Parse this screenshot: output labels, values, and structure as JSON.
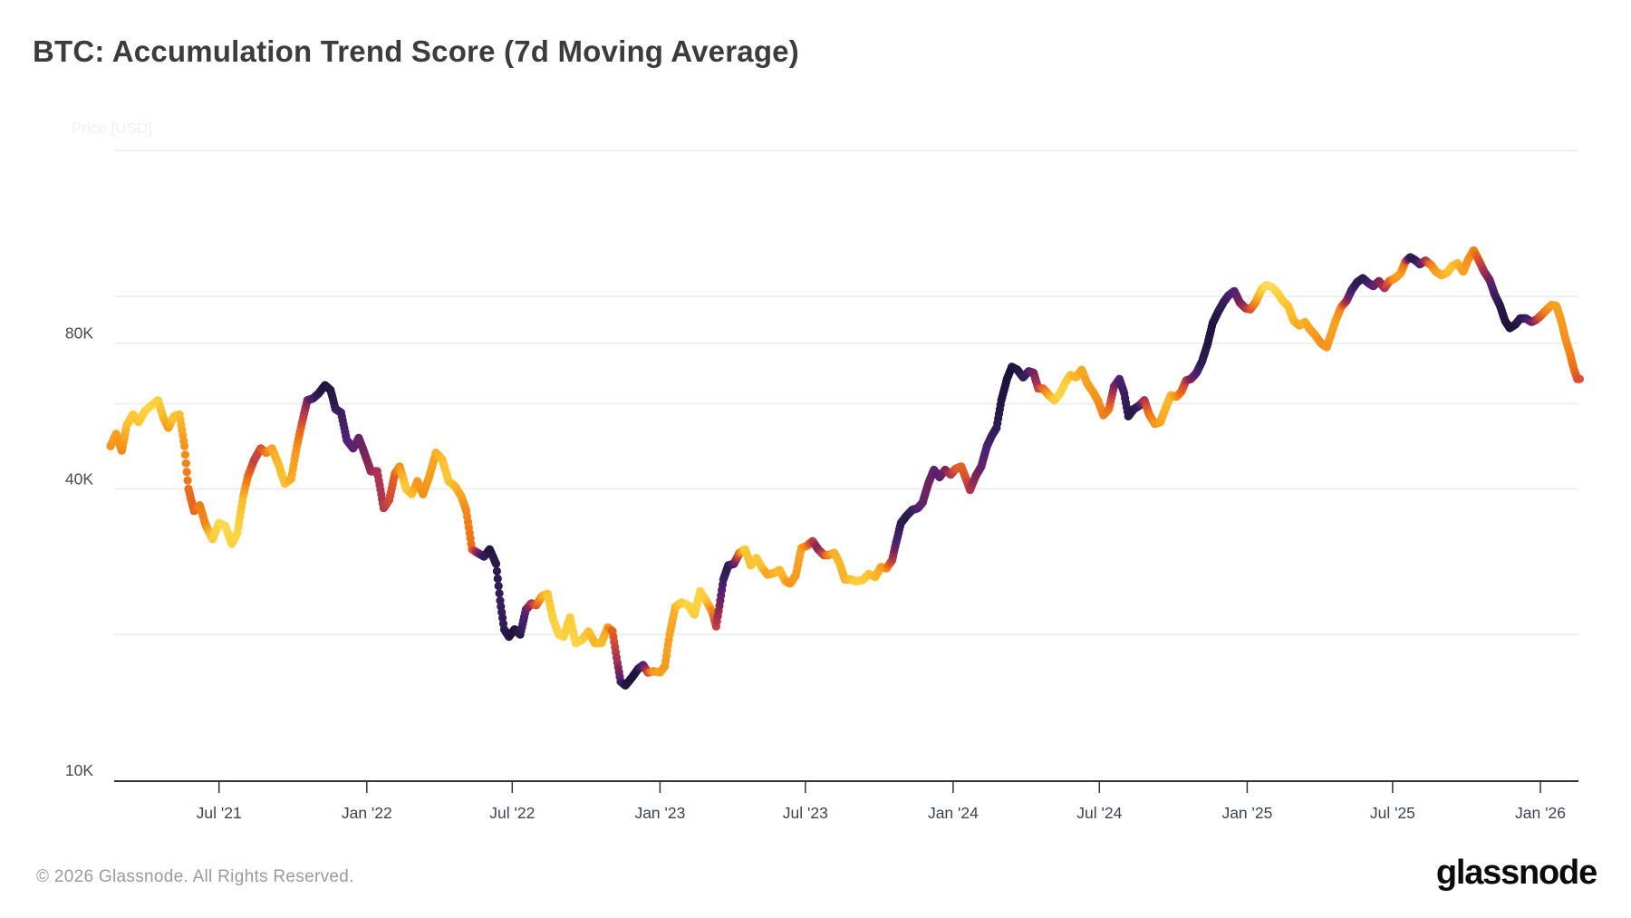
{
  "page": {
    "title": "BTC: Accumulation Trend Score (7d Moving Average)"
  },
  "footer": {
    "copyright": "© 2026 Glassnode. All Rights Reserved.",
    "brand": "glassnode"
  },
  "colors": {
    "background": "#ffffff",
    "title_text": "#3c3c3c",
    "grid_line": "#ececec",
    "axis_line": "#333333",
    "tick_label": "#3d4451",
    "faint_axis_caption": "#eef0f2",
    "score_high_accumulation": "#140c2e",
    "score_neutral": "#d94f30",
    "score_distribution": "#f9e08c"
  },
  "chart_data": {
    "type": "scatter",
    "title": "BTC: Accumulation Trend Score (7d Moving Average)",
    "ylabel": "Price [USD]",
    "yscale": "log",
    "ylim_usd": [
      10000,
      200000
    ],
    "grid": "horizontal-only",
    "legend": "none",
    "colormap": "inferno-reversed: score 1 = dark purple/black (strong accumulation), score 0 = pale yellow (distribution)",
    "gridline_prices_k": [
      20,
      40,
      60,
      80,
      100,
      200
    ],
    "yticks": [
      {
        "label": "10K",
        "value_k": 10
      },
      {
        "label": "40K",
        "value_k": 40
      },
      {
        "label": "80K",
        "value_k": 80
      }
    ],
    "xticks": [
      {
        "label": "Jul '21",
        "date": "2021-07-01"
      },
      {
        "label": "Jan '22",
        "date": "2022-01-01"
      },
      {
        "label": "Jul '22",
        "date": "2022-07-01"
      },
      {
        "label": "Jan '23",
        "date": "2023-01-01"
      },
      {
        "label": "Jul '23",
        "date": "2023-07-01"
      },
      {
        "label": "Jan '24",
        "date": "2024-01-01"
      },
      {
        "label": "Jul '24",
        "date": "2024-07-01"
      },
      {
        "label": "Jan '25",
        "date": "2025-01-01"
      },
      {
        "label": "Jul '25",
        "date": "2025-07-01"
      },
      {
        "label": "Jan '26",
        "date": "2026-01-01"
      }
    ],
    "points_format": [
      "date",
      "btc_price_thousand_usd",
      "accumulation_trend_score_0_to_1"
    ],
    "points": [
      [
        "2021-02-16",
        49,
        0.32
      ],
      [
        "2021-02-23",
        52,
        0.28
      ],
      [
        "2021-03-02",
        48,
        0.35
      ],
      [
        "2021-03-08",
        54,
        0.22
      ],
      [
        "2021-03-16",
        57,
        0.15
      ],
      [
        "2021-03-23",
        55,
        0.18
      ],
      [
        "2021-03-31",
        58,
        0.12
      ],
      [
        "2021-04-08",
        59.5,
        0.1
      ],
      [
        "2021-04-16",
        61,
        0.12
      ],
      [
        "2021-04-23",
        56,
        0.22
      ],
      [
        "2021-04-29",
        53.5,
        0.3
      ],
      [
        "2021-05-06",
        56.5,
        0.18
      ],
      [
        "2021-05-13",
        57,
        0.2
      ],
      [
        "2021-05-19",
        49,
        0.32
      ],
      [
        "2021-05-24",
        40,
        0.42
      ],
      [
        "2021-05-31",
        36,
        0.45
      ],
      [
        "2021-06-07",
        37,
        0.38
      ],
      [
        "2021-06-15",
        33.5,
        0.35
      ],
      [
        "2021-06-23",
        31.5,
        0.15
      ],
      [
        "2021-07-01",
        34,
        0.1
      ],
      [
        "2021-07-09",
        33.5,
        0.08
      ],
      [
        "2021-07-17",
        30.8,
        0.12
      ],
      [
        "2021-07-24",
        32.5,
        0.1
      ],
      [
        "2021-07-31",
        38.5,
        0.22
      ],
      [
        "2021-08-06",
        42.5,
        0.4
      ],
      [
        "2021-08-14",
        46,
        0.55
      ],
      [
        "2021-08-22",
        48.5,
        0.52
      ],
      [
        "2021-08-29",
        47.5,
        0.4
      ],
      [
        "2021-09-05",
        48.5,
        0.28
      ],
      [
        "2021-09-13",
        45,
        0.22
      ],
      [
        "2021-09-21",
        41,
        0.18
      ],
      [
        "2021-09-29",
        42,
        0.25
      ],
      [
        "2021-10-06",
        49,
        0.32
      ],
      [
        "2021-10-12",
        54.5,
        0.48
      ],
      [
        "2021-10-19",
        61,
        0.68
      ],
      [
        "2021-10-26",
        61.5,
        0.82
      ],
      [
        "2021-11-02",
        63,
        0.9
      ],
      [
        "2021-11-10",
        65.5,
        0.96
      ],
      [
        "2021-11-17",
        64,
        0.94
      ],
      [
        "2021-11-23",
        58.5,
        0.9
      ],
      [
        "2021-11-30",
        57.5,
        0.86
      ],
      [
        "2021-12-07",
        50.5,
        0.8
      ],
      [
        "2021-12-15",
        48.5,
        0.78
      ],
      [
        "2021-12-22",
        51,
        0.75
      ],
      [
        "2021-12-29",
        47.5,
        0.72
      ],
      [
        "2022-01-06",
        43.5,
        0.66
      ],
      [
        "2022-01-14",
        43.5,
        0.6
      ],
      [
        "2022-01-22",
        36.5,
        0.58
      ],
      [
        "2022-01-29",
        38,
        0.52
      ],
      [
        "2022-02-05",
        43,
        0.45
      ],
      [
        "2022-02-11",
        44.5,
        0.32
      ],
      [
        "2022-02-19",
        40,
        0.15
      ],
      [
        "2022-02-26",
        39,
        0.2
      ],
      [
        "2022-03-05",
        41.5,
        0.3
      ],
      [
        "2022-03-12",
        39,
        0.33
      ],
      [
        "2022-03-20",
        42.5,
        0.3
      ],
      [
        "2022-03-28",
        47.5,
        0.26
      ],
      [
        "2022-04-05",
        46,
        0.2
      ],
      [
        "2022-04-13",
        41.5,
        0.16
      ],
      [
        "2022-04-21",
        40.5,
        0.22
      ],
      [
        "2022-04-29",
        38.5,
        0.28
      ],
      [
        "2022-05-05",
        36,
        0.35
      ],
      [
        "2022-05-12",
        30,
        0.42
      ],
      [
        "2022-05-19",
        29.5,
        0.65
      ],
      [
        "2022-05-27",
        29,
        0.88
      ],
      [
        "2022-06-03",
        30,
        0.94
      ],
      [
        "2022-06-11",
        28,
        0.92
      ],
      [
        "2022-06-16",
        23.5,
        0.88
      ],
      [
        "2022-06-21",
        20.5,
        0.9
      ],
      [
        "2022-06-27",
        19.8,
        0.94
      ],
      [
        "2022-07-04",
        20.5,
        0.96
      ],
      [
        "2022-07-11",
        20,
        0.92
      ],
      [
        "2022-07-18",
        22.5,
        0.78
      ],
      [
        "2022-07-25",
        23.2,
        0.62
      ],
      [
        "2022-07-31",
        23,
        0.5
      ],
      [
        "2022-08-07",
        24,
        0.3
      ],
      [
        "2022-08-14",
        24.3,
        0.18
      ],
      [
        "2022-08-21",
        21.5,
        0.12
      ],
      [
        "2022-08-28",
        20,
        0.1
      ],
      [
        "2022-09-03",
        19.8,
        0.12
      ],
      [
        "2022-09-11",
        21.7,
        0.15
      ],
      [
        "2022-09-18",
        19.2,
        0.1
      ],
      [
        "2022-09-26",
        19.5,
        0.12
      ],
      [
        "2022-10-04",
        20.3,
        0.18
      ],
      [
        "2022-10-12",
        19.2,
        0.24
      ],
      [
        "2022-10-20",
        19.2,
        0.2
      ],
      [
        "2022-10-28",
        20.7,
        0.28
      ],
      [
        "2022-11-03",
        20.3,
        0.45
      ],
      [
        "2022-11-09",
        17.5,
        0.62
      ],
      [
        "2022-11-13",
        16,
        0.8
      ],
      [
        "2022-11-19",
        15.7,
        0.93
      ],
      [
        "2022-11-27",
        16.3,
        0.96
      ],
      [
        "2022-12-05",
        17,
        0.95
      ],
      [
        "2022-12-11",
        17.3,
        0.82
      ],
      [
        "2022-12-17",
        16.7,
        0.55
      ],
      [
        "2022-12-24",
        16.8,
        0.32
      ],
      [
        "2023-01-01",
        16.7,
        0.28
      ],
      [
        "2023-01-07",
        17.2,
        0.3
      ],
      [
        "2023-01-13",
        20,
        0.28
      ],
      [
        "2023-01-20",
        22.8,
        0.24
      ],
      [
        "2023-01-28",
        23.3,
        0.15
      ],
      [
        "2023-02-05",
        23,
        0.1
      ],
      [
        "2023-02-13",
        22,
        0.13
      ],
      [
        "2023-02-20",
        24.6,
        0.1
      ],
      [
        "2023-02-28",
        23.4,
        0.16
      ],
      [
        "2023-03-07",
        22.3,
        0.35
      ],
      [
        "2023-03-12",
        20.8,
        0.55
      ],
      [
        "2023-03-17",
        23.5,
        0.72
      ],
      [
        "2023-03-21",
        26,
        0.85
      ],
      [
        "2023-03-27",
        27.8,
        0.92
      ],
      [
        "2023-04-03",
        28,
        0.82
      ],
      [
        "2023-04-10",
        29.5,
        0.45
      ],
      [
        "2023-04-17",
        30,
        0.16
      ],
      [
        "2023-04-24",
        27.8,
        0.2
      ],
      [
        "2023-05-01",
        28.8,
        0.15
      ],
      [
        "2023-05-08",
        27.5,
        0.18
      ],
      [
        "2023-05-15",
        26.6,
        0.28
      ],
      [
        "2023-05-23",
        26.8,
        0.24
      ],
      [
        "2023-05-30",
        27.2,
        0.2
      ],
      [
        "2023-06-06",
        25.8,
        0.25
      ],
      [
        "2023-06-12",
        25.5,
        0.32
      ],
      [
        "2023-06-19",
        26.5,
        0.3
      ],
      [
        "2023-06-26",
        30.2,
        0.28
      ],
      [
        "2023-07-03",
        30.5,
        0.35
      ],
      [
        "2023-07-10",
        31.2,
        0.55
      ],
      [
        "2023-07-17",
        30,
        0.68
      ],
      [
        "2023-07-24",
        29.2,
        0.55
      ],
      [
        "2023-07-30",
        29.2,
        0.38
      ],
      [
        "2023-08-06",
        29.5,
        0.25
      ],
      [
        "2023-08-13",
        28,
        0.22
      ],
      [
        "2023-08-19",
        26,
        0.24
      ],
      [
        "2023-08-26",
        26,
        0.2
      ],
      [
        "2023-09-02",
        25.8,
        0.15
      ],
      [
        "2023-09-10",
        25.9,
        0.13
      ],
      [
        "2023-09-18",
        26.7,
        0.17
      ],
      [
        "2023-09-26",
        26.3,
        0.22
      ],
      [
        "2023-10-03",
        27.6,
        0.26
      ],
      [
        "2023-10-10",
        27.4,
        0.32
      ],
      [
        "2023-10-17",
        28.5,
        0.55
      ],
      [
        "2023-10-22",
        31,
        0.8
      ],
      [
        "2023-10-28",
        34,
        0.9
      ],
      [
        "2023-11-04",
        35.2,
        0.92
      ],
      [
        "2023-11-11",
        36.2,
        0.88
      ],
      [
        "2023-11-18",
        36.5,
        0.82
      ],
      [
        "2023-11-24",
        37.5,
        0.76
      ],
      [
        "2023-12-01",
        41,
        0.72
      ],
      [
        "2023-12-08",
        43.8,
        0.76
      ],
      [
        "2023-12-15",
        42.3,
        0.8
      ],
      [
        "2023-12-22",
        43.8,
        0.72
      ],
      [
        "2023-12-29",
        42.8,
        0.6
      ],
      [
        "2024-01-04",
        44,
        0.5
      ],
      [
        "2024-01-11",
        44.5,
        0.45
      ],
      [
        "2024-01-17",
        42,
        0.5
      ],
      [
        "2024-01-22",
        39.8,
        0.58
      ],
      [
        "2024-01-29",
        42.5,
        0.68
      ],
      [
        "2024-02-05",
        44.5,
        0.76
      ],
      [
        "2024-02-12",
        49,
        0.8
      ],
      [
        "2024-02-18",
        51.5,
        0.85
      ],
      [
        "2024-02-24",
        53.5,
        0.9
      ],
      [
        "2024-03-01",
        61,
        0.94
      ],
      [
        "2024-03-08",
        67.5,
        0.96
      ],
      [
        "2024-03-14",
        71.5,
        0.97
      ],
      [
        "2024-03-21",
        70.5,
        0.94
      ],
      [
        "2024-03-28",
        68,
        0.9
      ],
      [
        "2024-04-04",
        70,
        0.84
      ],
      [
        "2024-04-10",
        69.5,
        0.72
      ],
      [
        "2024-04-16",
        64.5,
        0.58
      ],
      [
        "2024-04-22",
        64.5,
        0.45
      ],
      [
        "2024-04-29",
        62.5,
        0.3
      ],
      [
        "2024-05-06",
        61,
        0.16
      ],
      [
        "2024-05-13",
        63,
        0.1
      ],
      [
        "2024-05-20",
        66.5,
        0.12
      ],
      [
        "2024-05-26",
        68.8,
        0.18
      ],
      [
        "2024-06-02",
        68,
        0.22
      ],
      [
        "2024-06-09",
        70.5,
        0.26
      ],
      [
        "2024-06-16",
        66,
        0.28
      ],
      [
        "2024-06-23",
        63.5,
        0.3
      ],
      [
        "2024-06-29",
        61,
        0.33
      ],
      [
        "2024-07-06",
        56.8,
        0.36
      ],
      [
        "2024-07-13",
        58.5,
        0.4
      ],
      [
        "2024-07-19",
        65,
        0.65
      ],
      [
        "2024-07-26",
        67.5,
        0.8
      ],
      [
        "2024-08-01",
        63,
        0.86
      ],
      [
        "2024-08-06",
        56.5,
        0.91
      ],
      [
        "2024-08-13",
        58.5,
        0.93
      ],
      [
        "2024-08-20",
        59.5,
        0.88
      ],
      [
        "2024-08-26",
        61,
        0.6
      ],
      [
        "2024-09-01",
        57,
        0.42
      ],
      [
        "2024-09-08",
        54.5,
        0.32
      ],
      [
        "2024-09-15",
        55,
        0.28
      ],
      [
        "2024-09-21",
        58.5,
        0.24
      ],
      [
        "2024-09-28",
        62.5,
        0.22
      ],
      [
        "2024-10-05",
        62,
        0.3
      ],
      [
        "2024-10-11",
        63.5,
        0.42
      ],
      [
        "2024-10-17",
        67,
        0.55
      ],
      [
        "2024-10-23",
        67.5,
        0.68
      ],
      [
        "2024-10-30",
        69.5,
        0.8
      ],
      [
        "2024-11-06",
        73.5,
        0.9
      ],
      [
        "2024-11-13",
        80,
        0.94
      ],
      [
        "2024-11-19",
        88,
        0.95
      ],
      [
        "2024-11-26",
        93,
        0.92
      ],
      [
        "2024-12-03",
        97.5,
        0.88
      ],
      [
        "2024-12-09",
        100.5,
        0.84
      ],
      [
        "2024-12-16",
        102.5,
        0.8
      ],
      [
        "2024-12-23",
        97,
        0.72
      ],
      [
        "2024-12-30",
        94.5,
        0.62
      ],
      [
        "2025-01-05",
        94,
        0.52
      ],
      [
        "2025-01-12",
        97.5,
        0.35
      ],
      [
        "2025-01-19",
        103.5,
        0.15
      ],
      [
        "2025-01-25",
        105.5,
        0.08
      ],
      [
        "2025-02-01",
        104.5,
        0.06
      ],
      [
        "2025-02-08",
        101.5,
        0.1
      ],
      [
        "2025-02-14",
        98,
        0.14
      ],
      [
        "2025-02-21",
        95.5,
        0.18
      ],
      [
        "2025-02-28",
        89,
        0.22
      ],
      [
        "2025-03-07",
        87,
        0.26
      ],
      [
        "2025-03-14",
        88.5,
        0.24
      ],
      [
        "2025-03-20",
        85.5,
        0.28
      ],
      [
        "2025-03-27",
        83,
        0.3
      ],
      [
        "2025-04-03",
        80,
        0.33
      ],
      [
        "2025-04-10",
        78.5,
        0.32
      ],
      [
        "2025-04-15",
        83,
        0.3
      ],
      [
        "2025-04-21",
        89,
        0.28
      ],
      [
        "2025-04-28",
        95,
        0.35
      ],
      [
        "2025-05-05",
        98,
        0.62
      ],
      [
        "2025-05-11",
        103,
        0.82
      ],
      [
        "2025-05-18",
        107,
        0.9
      ],
      [
        "2025-05-25",
        109,
        0.92
      ],
      [
        "2025-06-01",
        106.5,
        0.86
      ],
      [
        "2025-06-07",
        105,
        0.78
      ],
      [
        "2025-06-14",
        107.5,
        0.7
      ],
      [
        "2025-06-21",
        104,
        0.62
      ],
      [
        "2025-06-27",
        107.5,
        0.48
      ],
      [
        "2025-07-04",
        109,
        0.32
      ],
      [
        "2025-07-11",
        111.5,
        0.28
      ],
      [
        "2025-07-17",
        118,
        0.42
      ],
      [
        "2025-07-23",
        120.5,
        0.88
      ],
      [
        "2025-07-30",
        118.5,
        0.92
      ],
      [
        "2025-08-04",
        116.5,
        0.82
      ],
      [
        "2025-08-11",
        118.5,
        0.65
      ],
      [
        "2025-08-18",
        116,
        0.4
      ],
      [
        "2025-08-24",
        112.5,
        0.3
      ],
      [
        "2025-08-31",
        110.5,
        0.26
      ],
      [
        "2025-09-07",
        112,
        0.22
      ],
      [
        "2025-09-13",
        115.5,
        0.18
      ],
      [
        "2025-09-20",
        117,
        0.22
      ],
      [
        "2025-09-27",
        112.5,
        0.28
      ],
      [
        "2025-10-03",
        119,
        0.32
      ],
      [
        "2025-10-10",
        124.5,
        0.35
      ],
      [
        "2025-10-16",
        119,
        0.48
      ],
      [
        "2025-10-23",
        112.5,
        0.6
      ],
      [
        "2025-10-30",
        108,
        0.72
      ],
      [
        "2025-11-05",
        101,
        0.85
      ],
      [
        "2025-11-12",
        95.5,
        0.92
      ],
      [
        "2025-11-18",
        89,
        0.95
      ],
      [
        "2025-11-24",
        86,
        0.96
      ],
      [
        "2025-12-01",
        87.5,
        0.95
      ],
      [
        "2025-12-07",
        90,
        0.92
      ],
      [
        "2025-12-14",
        90,
        0.88
      ],
      [
        "2025-12-21",
        88.5,
        0.78
      ],
      [
        "2025-12-27",
        89.5,
        0.62
      ],
      [
        "2026-01-01",
        91,
        0.5
      ],
      [
        "2026-01-08",
        93.5,
        0.38
      ],
      [
        "2026-01-15",
        96,
        0.3
      ],
      [
        "2026-01-21",
        95.5,
        0.28
      ],
      [
        "2026-01-27",
        89,
        0.3
      ],
      [
        "2026-02-01",
        82,
        0.32
      ],
      [
        "2026-02-07",
        76,
        0.36
      ],
      [
        "2026-02-12",
        70.5,
        0.42
      ],
      [
        "2026-02-16",
        67.5,
        0.48
      ],
      [
        "2026-02-19",
        67.5,
        0.5
      ]
    ]
  }
}
